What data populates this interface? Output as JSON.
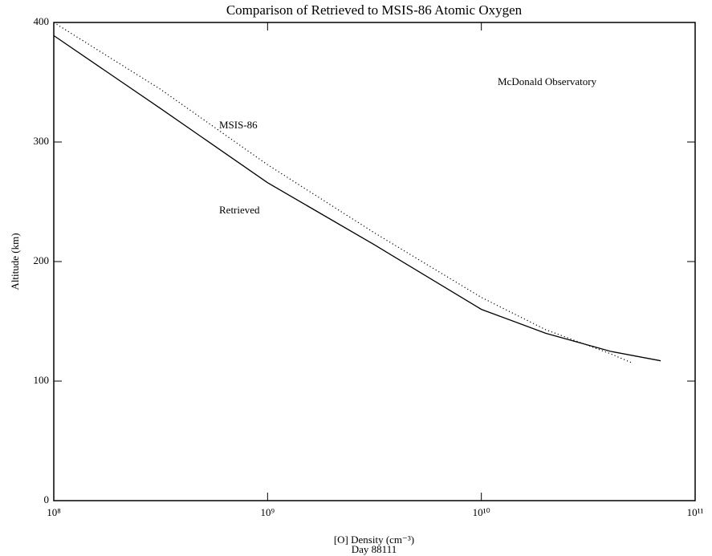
{
  "chart_data": {
    "type": "line",
    "title": "Comparison of Retrieved to MSIS-86 Atomic Oxygen",
    "xlabel": "[O] Density (cm⁻³)",
    "subtitle": "Day 88111",
    "ylabel": "Altitude (km)",
    "annotations": [
      "MSIS-86",
      "Retrieved",
      "McDonald Observatory"
    ],
    "xscale": "log",
    "series": [
      {
        "name": "Retrieved",
        "color": "#000000",
        "style": "solid",
        "x": [
          100000000,
          316000000,
          1000000000,
          3160000000,
          10000000000,
          20000000000,
          40000000000,
          69000000000
        ],
        "values": [
          389,
          328,
          266,
          214,
          160,
          140,
          125,
          117
        ]
      },
      {
        "name": "MSIS-86",
        "color": "#000000",
        "style": "dotted",
        "x": [
          100000000,
          316000000,
          1000000000,
          3160000000,
          10000000000,
          20000000000,
          40000000000,
          51000000000
        ],
        "values": [
          400,
          344,
          281,
          224,
          170,
          143,
          123,
          115
        ]
      }
    ],
    "xlim": [
      100000000,
      100000000000
    ],
    "xticks": [
      {
        "value": 100000000,
        "label": "10⁸"
      },
      {
        "value": 1000000000,
        "label": "10⁹"
      },
      {
        "value": 10000000000,
        "label": "10¹⁰"
      },
      {
        "value": 100000000000,
        "label": "10¹¹"
      }
    ],
    "ylim": [
      0,
      400
    ],
    "yticks": [
      0,
      100,
      200,
      300,
      400
    ]
  }
}
